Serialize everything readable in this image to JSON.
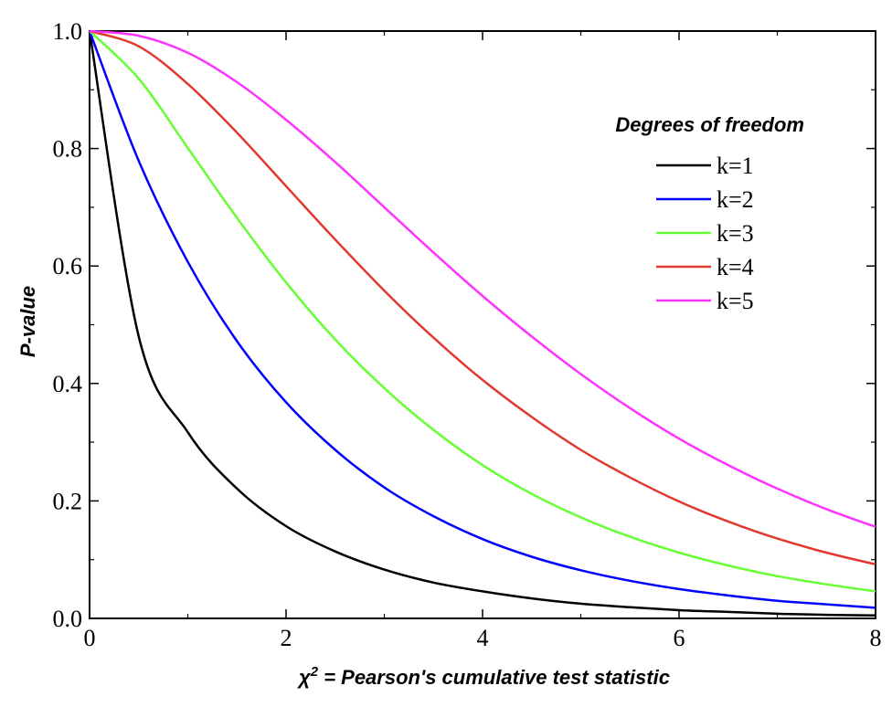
{
  "chart_data": {
    "type": "line",
    "title": "",
    "xlabel_symbol": "χ",
    "xlabel_exponent": "2",
    "xlabel_rest": " = Pearson's cumulative test statistic",
    "ylabel": "P-value",
    "xlim": [
      0,
      8
    ],
    "ylim": [
      0,
      1
    ],
    "x_ticks": [
      "0",
      "2",
      "4",
      "6",
      "8"
    ],
    "y_ticks": [
      "0.0",
      "0.2",
      "0.4",
      "0.6",
      "0.8",
      "1.0"
    ],
    "grid": false,
    "legend": {
      "title": "Degrees of freedom",
      "position": "top-right"
    },
    "x": [
      0,
      0.5,
      1,
      1.5,
      2,
      2.5,
      3,
      3.5,
      4,
      4.5,
      5,
      5.5,
      6,
      6.5,
      7,
      7.5,
      8
    ],
    "series": [
      {
        "name": "k=1",
        "k": 1,
        "color": "#000000",
        "values": [
          1.0,
          0.48,
          0.317,
          0.221,
          0.157,
          0.114,
          0.083,
          0.061,
          0.046,
          0.034,
          0.025,
          0.019,
          0.014,
          0.011,
          0.008,
          0.006,
          0.005
        ]
      },
      {
        "name": "k=2",
        "k": 2,
        "color": "#0000ff",
        "values": [
          1.0,
          0.779,
          0.607,
          0.472,
          0.368,
          0.287,
          0.223,
          0.174,
          0.135,
          0.105,
          0.082,
          0.064,
          0.05,
          0.039,
          0.03,
          0.024,
          0.018
        ]
      },
      {
        "name": "k=3",
        "k": 3,
        "color": "#66ff33",
        "values": [
          1.0,
          0.919,
          0.801,
          0.682,
          0.572,
          0.475,
          0.392,
          0.321,
          0.261,
          0.212,
          0.172,
          0.139,
          0.112,
          0.09,
          0.072,
          0.058,
          0.046
        ]
      },
      {
        "name": "k=4",
        "k": 4,
        "color": "#e03a2e",
        "values": [
          1.0,
          0.974,
          0.91,
          0.827,
          0.736,
          0.645,
          0.558,
          0.478,
          0.406,
          0.343,
          0.287,
          0.24,
          0.199,
          0.165,
          0.136,
          0.112,
          0.092
        ]
      },
      {
        "name": "k=5",
        "k": 5,
        "color": "#ff33ff",
        "values": [
          1.0,
          0.992,
          0.963,
          0.913,
          0.849,
          0.777,
          0.7,
          0.623,
          0.549,
          0.48,
          0.416,
          0.358,
          0.306,
          0.261,
          0.221,
          0.186,
          0.156
        ]
      }
    ]
  }
}
